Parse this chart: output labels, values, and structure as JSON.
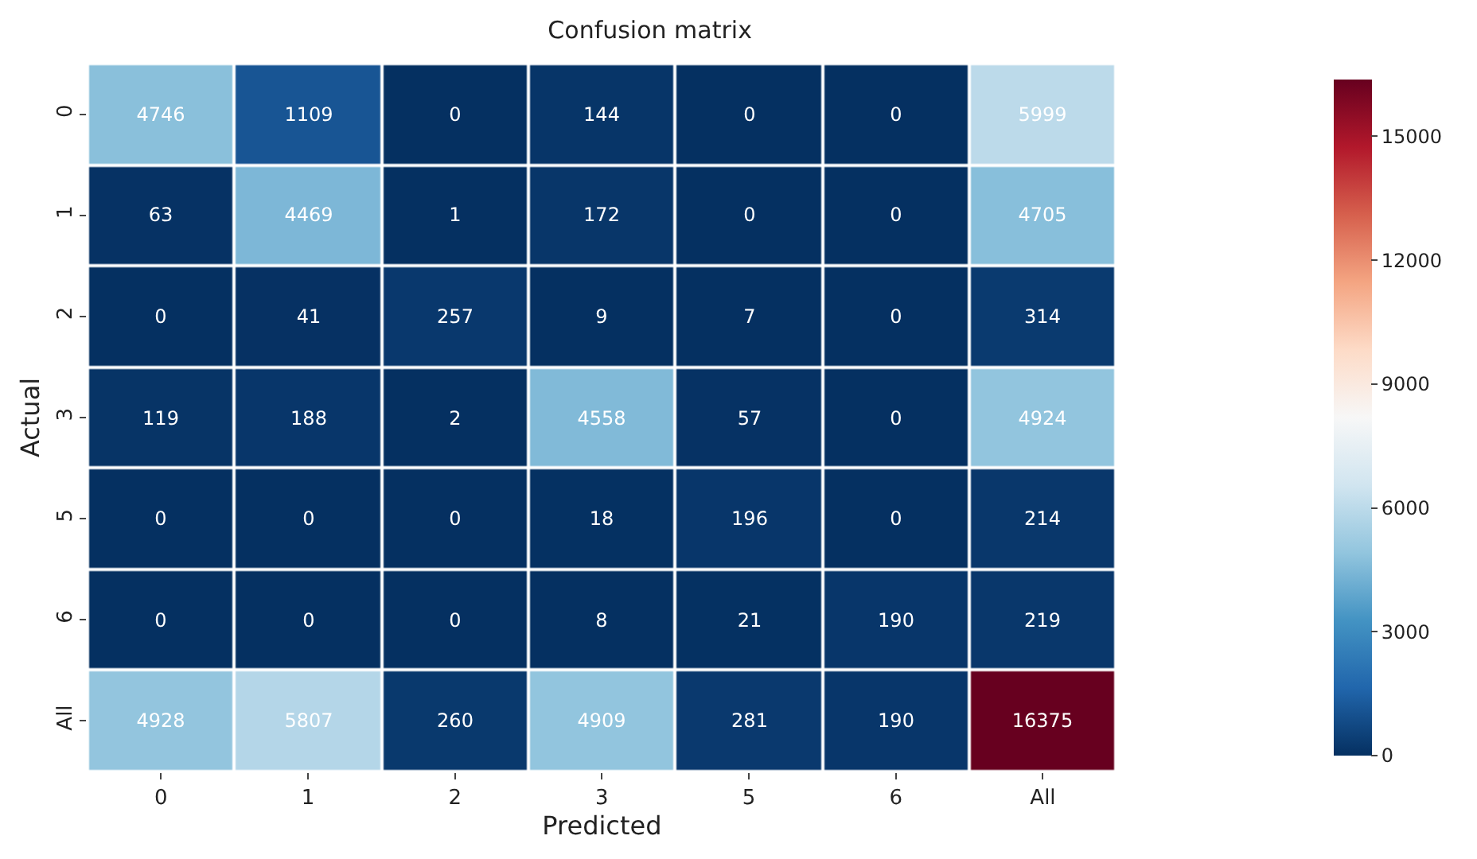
{
  "chart_data": {
    "type": "heatmap",
    "title": "Confusion matrix",
    "xlabel": "Predicted",
    "ylabel": "Actual",
    "categories": [
      "0",
      "1",
      "2",
      "3",
      "5",
      "6",
      "All"
    ],
    "y_categories": [
      "0",
      "1",
      "2",
      "3",
      "5",
      "6",
      "All"
    ],
    "cells": [
      [
        4746,
        1109,
        0,
        144,
        0,
        0,
        5999
      ],
      [
        63,
        4469,
        1,
        172,
        0,
        0,
        4705
      ],
      [
        0,
        41,
        257,
        9,
        7,
        0,
        314
      ],
      [
        119,
        188,
        2,
        4558,
        57,
        0,
        4924
      ],
      [
        0,
        0,
        0,
        18,
        196,
        0,
        214
      ],
      [
        0,
        0,
        0,
        8,
        21,
        190,
        219
      ],
      [
        4928,
        5807,
        260,
        4909,
        281,
        190,
        16375
      ]
    ],
    "clim": [
      0,
      16375
    ],
    "cticks": [
      0,
      3000,
      6000,
      9000,
      12000,
      15000
    ],
    "data_labels": true
  }
}
